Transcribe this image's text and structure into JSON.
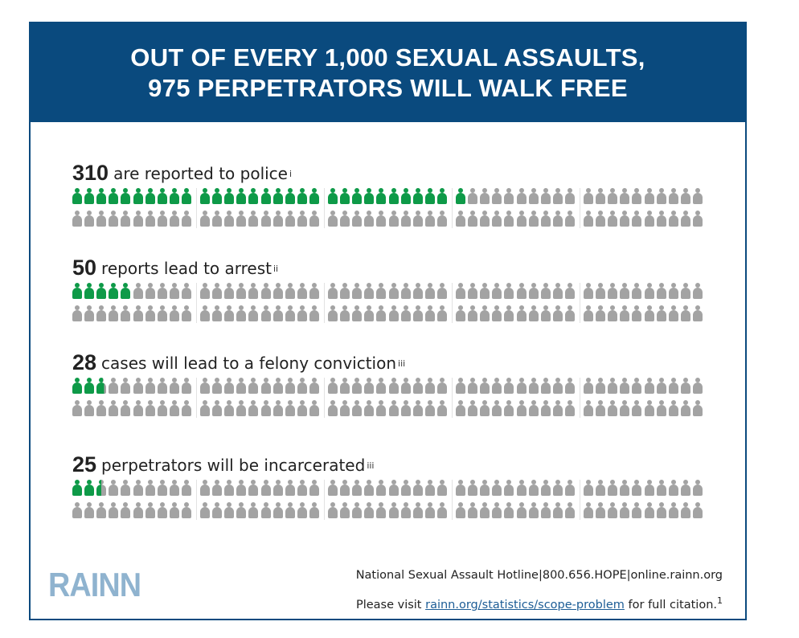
{
  "header": {
    "title_line1": "OUT OF EVERY 1,000 SEXUAL ASSAULTS,",
    "title_line2": "975 PERPETRATORS WILL WALK FREE"
  },
  "stats": [
    {
      "number": "310",
      "text": "are reported to police",
      "note": "i",
      "highlighted_of_100": 31
    },
    {
      "number": "50",
      "text": "reports lead to arrest",
      "note": "ii",
      "highlighted_of_100": 5
    },
    {
      "number": "28",
      "text": "cases will lead to a felony conviction",
      "note": "iii",
      "highlighted_of_100": 2.8
    },
    {
      "number": "25",
      "text": "perpetrators will be incarcerated",
      "note": "iii",
      "highlighted_of_100": 2.5
    }
  ],
  "colors": {
    "banner": "#0a4a7e",
    "highlighted_person": "#0e9a48",
    "other_person": "#a3a3a3",
    "logo": "#8fb3cf",
    "link": "#1d5d96"
  },
  "logo": {
    "text": "RAINN"
  },
  "footer": {
    "line1": "National Sexual Assault Hotline|800.656.HOPE|online.rainn.org",
    "line2_prefix": "Please visit ",
    "line2_link": "rainn.org/statistics/scope-problem",
    "line2_suffix": " for full citation.",
    "line2_note": "1"
  },
  "icons": {
    "person": "person-icon"
  }
}
